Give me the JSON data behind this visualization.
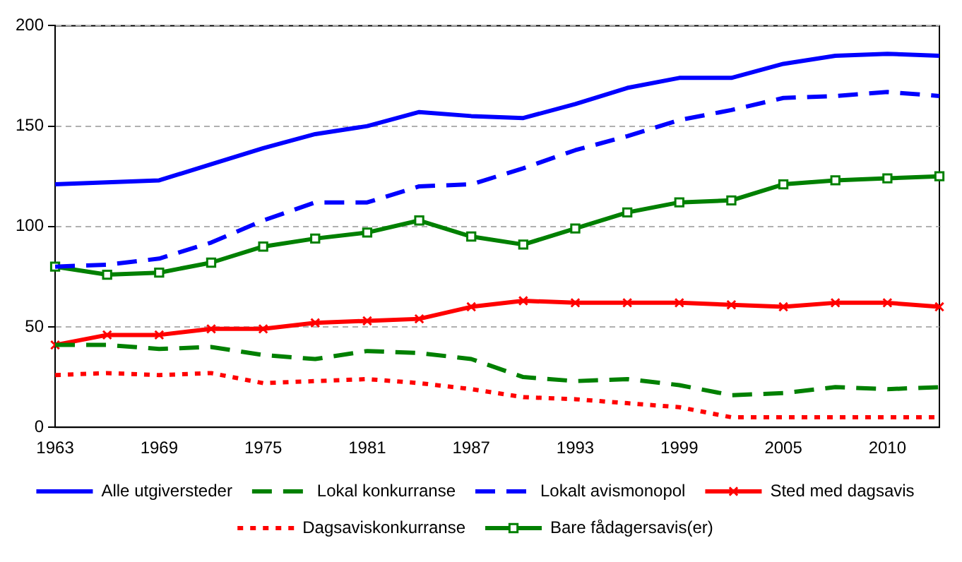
{
  "chart_data": {
    "type": "line",
    "categories": [
      "1963",
      null,
      "1969",
      null,
      "1975",
      null,
      "1981",
      null,
      "1987",
      null,
      "1993",
      null,
      "1999",
      null,
      "2005",
      null,
      "2010",
      null
    ],
    "ylim": [
      0,
      200
    ],
    "yticks": [
      0,
      50,
      100,
      150,
      200
    ],
    "grid": "y",
    "legend": "bottom",
    "series": [
      {
        "name": "Alle utgiversteder",
        "color": "#0000ff",
        "line_style": "solid",
        "marker": "none",
        "values": [
          121,
          122,
          123,
          131,
          139,
          146,
          150,
          157,
          155,
          154,
          161,
          169,
          174,
          174,
          181,
          185,
          186,
          185
        ]
      },
      {
        "name": "Lokal konkurranse",
        "color": "#008000",
        "line_style": "dashed",
        "marker": "none",
        "values": [
          41,
          41,
          39,
          40,
          36,
          34,
          38,
          37,
          34,
          25,
          23,
          24,
          21,
          16,
          17,
          20,
          19,
          20
        ]
      },
      {
        "name": "Lokalt avismonopol",
        "color": "#0000ff",
        "line_style": "dashed",
        "marker": "none",
        "values": [
          80,
          81,
          84,
          92,
          103,
          112,
          112,
          120,
          121,
          129,
          138,
          145,
          153,
          158,
          164,
          165,
          167,
          165
        ]
      },
      {
        "name": "Sted med dagsavis",
        "color": "#ff0000",
        "line_style": "solid",
        "marker": "cross",
        "values": [
          41,
          46,
          46,
          49,
          49,
          52,
          53,
          54,
          60,
          63,
          62,
          62,
          62,
          61,
          60,
          62,
          62,
          60
        ]
      },
      {
        "name": "Dagsaviskonkurranse",
        "color": "#ff0000",
        "line_style": "dotted",
        "marker": "none",
        "values": [
          26,
          27,
          26,
          27,
          22,
          23,
          24,
          22,
          19,
          15,
          14,
          12,
          10,
          5,
          5,
          5,
          5,
          5
        ]
      },
      {
        "name": "Bare fådagersavis(er)",
        "color": "#008000",
        "line_style": "solid",
        "marker": "square",
        "values": [
          80,
          76,
          77,
          82,
          90,
          94,
          97,
          103,
          95,
          91,
          99,
          107,
          112,
          113,
          121,
          123,
          124,
          125
        ]
      }
    ]
  }
}
